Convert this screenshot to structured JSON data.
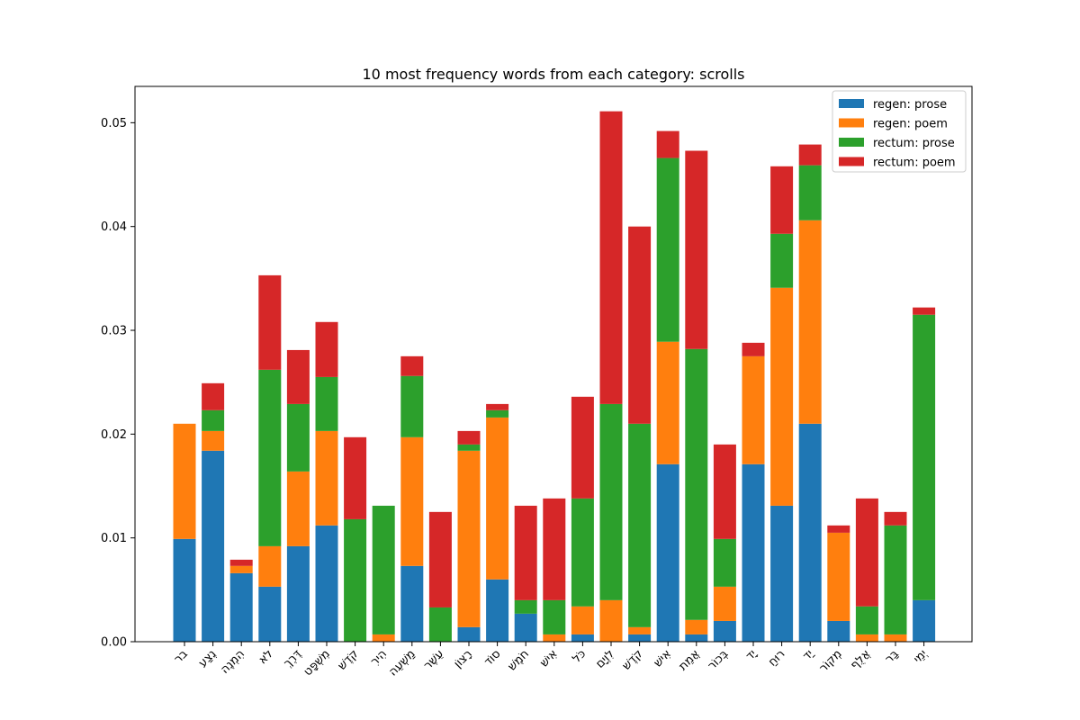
{
  "chart_data": {
    "type": "bar",
    "stacked": true,
    "title": "10 most frequency words from each category: scrolls",
    "xlabel": "",
    "ylabel": "",
    "ylim": [
      0,
      0.0535
    ],
    "yticks": [
      0.0,
      0.01,
      0.02,
      0.03,
      0.04,
      0.05
    ],
    "ytick_labels": [
      "0.00",
      "0.01",
      "0.02",
      "0.03",
      "0.04",
      "0.05"
    ],
    "legend_position": "top-right",
    "categories": [
      "בר",
      "נֶצַע",
      "הִמְנֶה",
      "לֹא",
      "דֶּרֶךְ",
      "מִשְׁפָּט",
      "קֹדֶשׁ",
      "הִירִ",
      "מַשְׁעֵה",
      "עֵשֶׁר",
      "רָצוֹן",
      "סוֹד",
      "חֹמֶשׁ",
      "אִישׁ",
      "כֹּל",
      "לִוְיָם",
      "קֹדֶשׁ",
      "אִישׁ",
      "אֲמֵת",
      "בְּכוֹר",
      "יָד",
      "רוּחַ",
      "יַד",
      "מְקוֹר",
      "אֲלֻף",
      "בַּר",
      "יְמֵי"
    ],
    "series": [
      {
        "name": "regen: prose",
        "color": "#1f77b4",
        "values": [
          0.0099,
          0.0184,
          0.0066,
          0.0053,
          0.0092,
          0.0112,
          0.0,
          0.0,
          0.0073,
          0.0,
          0.0014,
          0.006,
          0.0027,
          0.0,
          0.0007,
          0.0,
          0.0007,
          0.0171,
          0.0007,
          0.002,
          0.0171,
          0.0131,
          0.021,
          0.002,
          0.0,
          0.0,
          0.004
        ]
      },
      {
        "name": "regen: poem",
        "color": "#ff7f0e",
        "values": [
          0.0111,
          0.0019,
          0.0007,
          0.0039,
          0.0072,
          0.0091,
          0.0,
          0.0007,
          0.0124,
          0.0,
          0.017,
          0.0156,
          0.0,
          0.0007,
          0.0027,
          0.004,
          0.0007,
          0.0118,
          0.0014,
          0.0033,
          0.0104,
          0.021,
          0.0196,
          0.0085,
          0.0007,
          0.0007,
          0.0
        ]
      },
      {
        "name": "rectum: prose",
        "color": "#2ca02c",
        "values": [
          0.0,
          0.002,
          0.0,
          0.017,
          0.0065,
          0.0052,
          0.0118,
          0.0124,
          0.0059,
          0.0033,
          0.0006,
          0.0007,
          0.0013,
          0.0033,
          0.0104,
          0.0189,
          0.0196,
          0.0177,
          0.0261,
          0.0046,
          0.0,
          0.0052,
          0.0053,
          0.0,
          0.0027,
          0.0105,
          0.0275
        ]
      },
      {
        "name": "rectum: poem",
        "color": "#d62728",
        "values": [
          0.0,
          0.0026,
          0.0006,
          0.0091,
          0.0052,
          0.0053,
          0.0079,
          0.0,
          0.0019,
          0.0092,
          0.0013,
          0.0006,
          0.0091,
          0.0098,
          0.0098,
          0.0282,
          0.019,
          0.0026,
          0.0191,
          0.0091,
          0.0013,
          0.0065,
          0.002,
          0.0007,
          0.0104,
          0.0013,
          0.0007
        ]
      }
    ]
  }
}
